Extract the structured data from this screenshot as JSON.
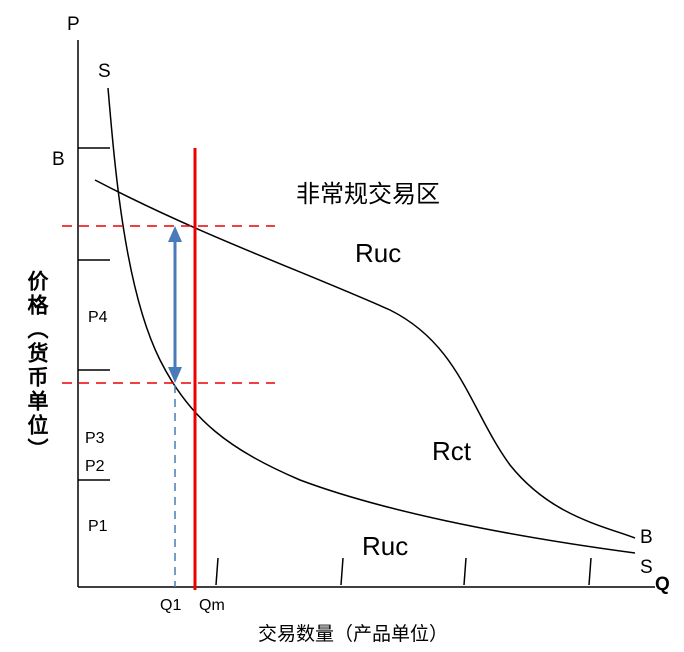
{
  "axes": {
    "y_label": "价格（货币单位）",
    "y_symbol": "P",
    "x_label": "交易数量（产品单位）",
    "x_symbol": "Q"
  },
  "curves": {
    "supply_top": "S",
    "supply_end": "S",
    "demand_start": "B",
    "demand_end": "B"
  },
  "regions": {
    "top": "非常规交易区",
    "upper": "Ruc",
    "middle": "Rct",
    "lower": "Ruc"
  },
  "price_levels": [
    "P4",
    "P3",
    "P2",
    "P1"
  ],
  "quantities": [
    "Q1",
    "Qm"
  ]
}
